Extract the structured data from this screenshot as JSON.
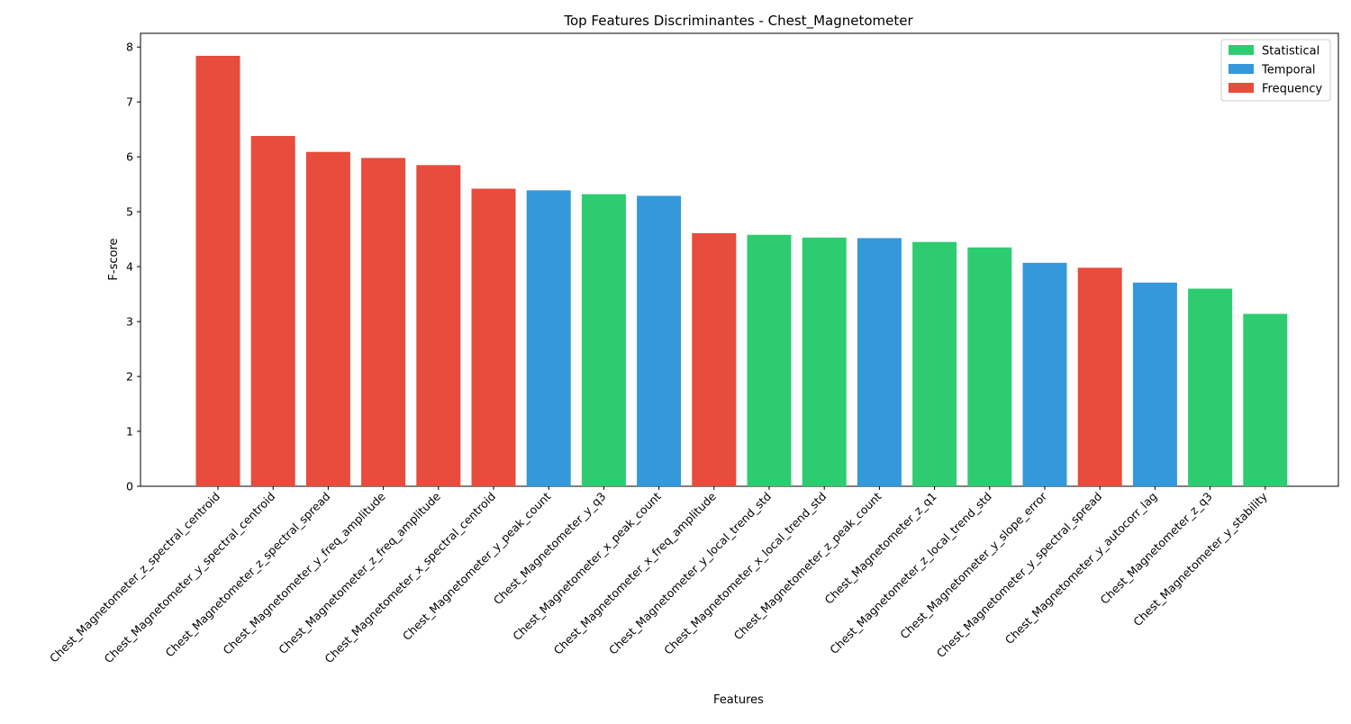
{
  "chart_data": {
    "type": "bar",
    "title": "Top Features Discriminantes - Chest_Magnetometer",
    "xlabel": "Features",
    "ylabel": "F-score",
    "ylim": [
      0,
      8.25
    ],
    "yticks": [
      0,
      1,
      2,
      3,
      4,
      5,
      6,
      7,
      8
    ],
    "grid": false,
    "legend_position": "top-right",
    "groups": [
      {
        "name": "Statistical",
        "color": "#2ecc71"
      },
      {
        "name": "Temporal",
        "color": "#3498db"
      },
      {
        "name": "Frequency",
        "color": "#e74c3c"
      }
    ],
    "categories": [
      "Chest_Magnetometer_z_spectral_centroid",
      "Chest_Magnetometer_y_spectral_centroid",
      "Chest_Magnetometer_z_spectral_spread",
      "Chest_Magnetometer_y_freq_amplitude",
      "Chest_Magnetometer_z_freq_amplitude",
      "Chest_Magnetometer_x_spectral_centroid",
      "Chest_Magnetometer_y_peak_count",
      "Chest_Magnetometer_y_q3",
      "Chest_Magnetometer_x_peak_count",
      "Chest_Magnetometer_x_freq_amplitude",
      "Chest_Magnetometer_y_local_trend_std",
      "Chest_Magnetometer_x_local_trend_std",
      "Chest_Magnetometer_z_peak_count",
      "Chest_Magnetometer_z_q1",
      "Chest_Magnetometer_z_local_trend_std",
      "Chest_Magnetometer_y_slope_error",
      "Chest_Magnetometer_y_spectral_spread",
      "Chest_Magnetometer_y_autocorr_lag",
      "Chest_Magnetometer_z_q3",
      "Chest_Magnetometer_y_stability"
    ],
    "values": [
      7.84,
      6.38,
      6.09,
      5.98,
      5.85,
      5.42,
      5.39,
      5.32,
      5.29,
      4.61,
      4.58,
      4.53,
      4.52,
      4.45,
      4.35,
      4.07,
      3.98,
      3.71,
      3.6,
      3.14
    ],
    "group_of_bar": [
      "Frequency",
      "Frequency",
      "Frequency",
      "Frequency",
      "Frequency",
      "Frequency",
      "Temporal",
      "Statistical",
      "Temporal",
      "Frequency",
      "Statistical",
      "Statistical",
      "Temporal",
      "Statistical",
      "Statistical",
      "Temporal",
      "Frequency",
      "Temporal",
      "Statistical",
      "Statistical"
    ]
  }
}
